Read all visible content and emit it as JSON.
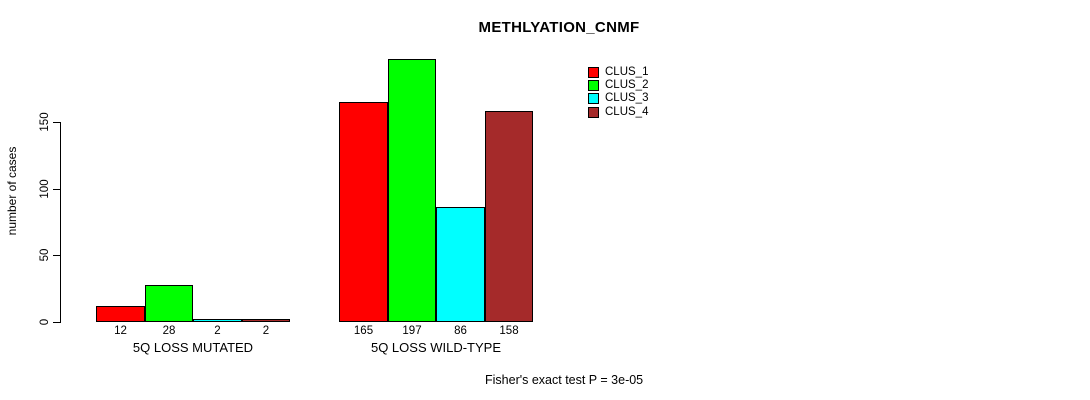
{
  "chart_data": {
    "type": "bar",
    "title": "METHLYATION_CNMF",
    "ylabel": "number of cases",
    "xlabel": "",
    "annotation": "Fisher's exact test P = 3e-05",
    "categories": [
      "5Q LOSS MUTATED",
      "5Q LOSS WILD-TYPE"
    ],
    "series": [
      {
        "name": "CLUS_1",
        "color": "#FF0000",
        "values": [
          12,
          165
        ]
      },
      {
        "name": "CLUS_2",
        "color": "#00FF00",
        "values": [
          28,
          197
        ]
      },
      {
        "name": "CLUS_3",
        "color": "#00FFFF",
        "values": [
          2,
          86
        ]
      },
      {
        "name": "CLUS_4",
        "color": "#A52A2A",
        "values": [
          2,
          158
        ]
      }
    ],
    "yticks": [
      0,
      50,
      100,
      150
    ],
    "ylim": [
      0,
      200
    ],
    "grid": false,
    "legend_position": "top-right",
    "bar_value_labels_shown": true,
    "legend_entries": [
      "CLUS_1",
      "CLUS_2",
      "CLUS_3",
      "CLUS_4"
    ]
  }
}
